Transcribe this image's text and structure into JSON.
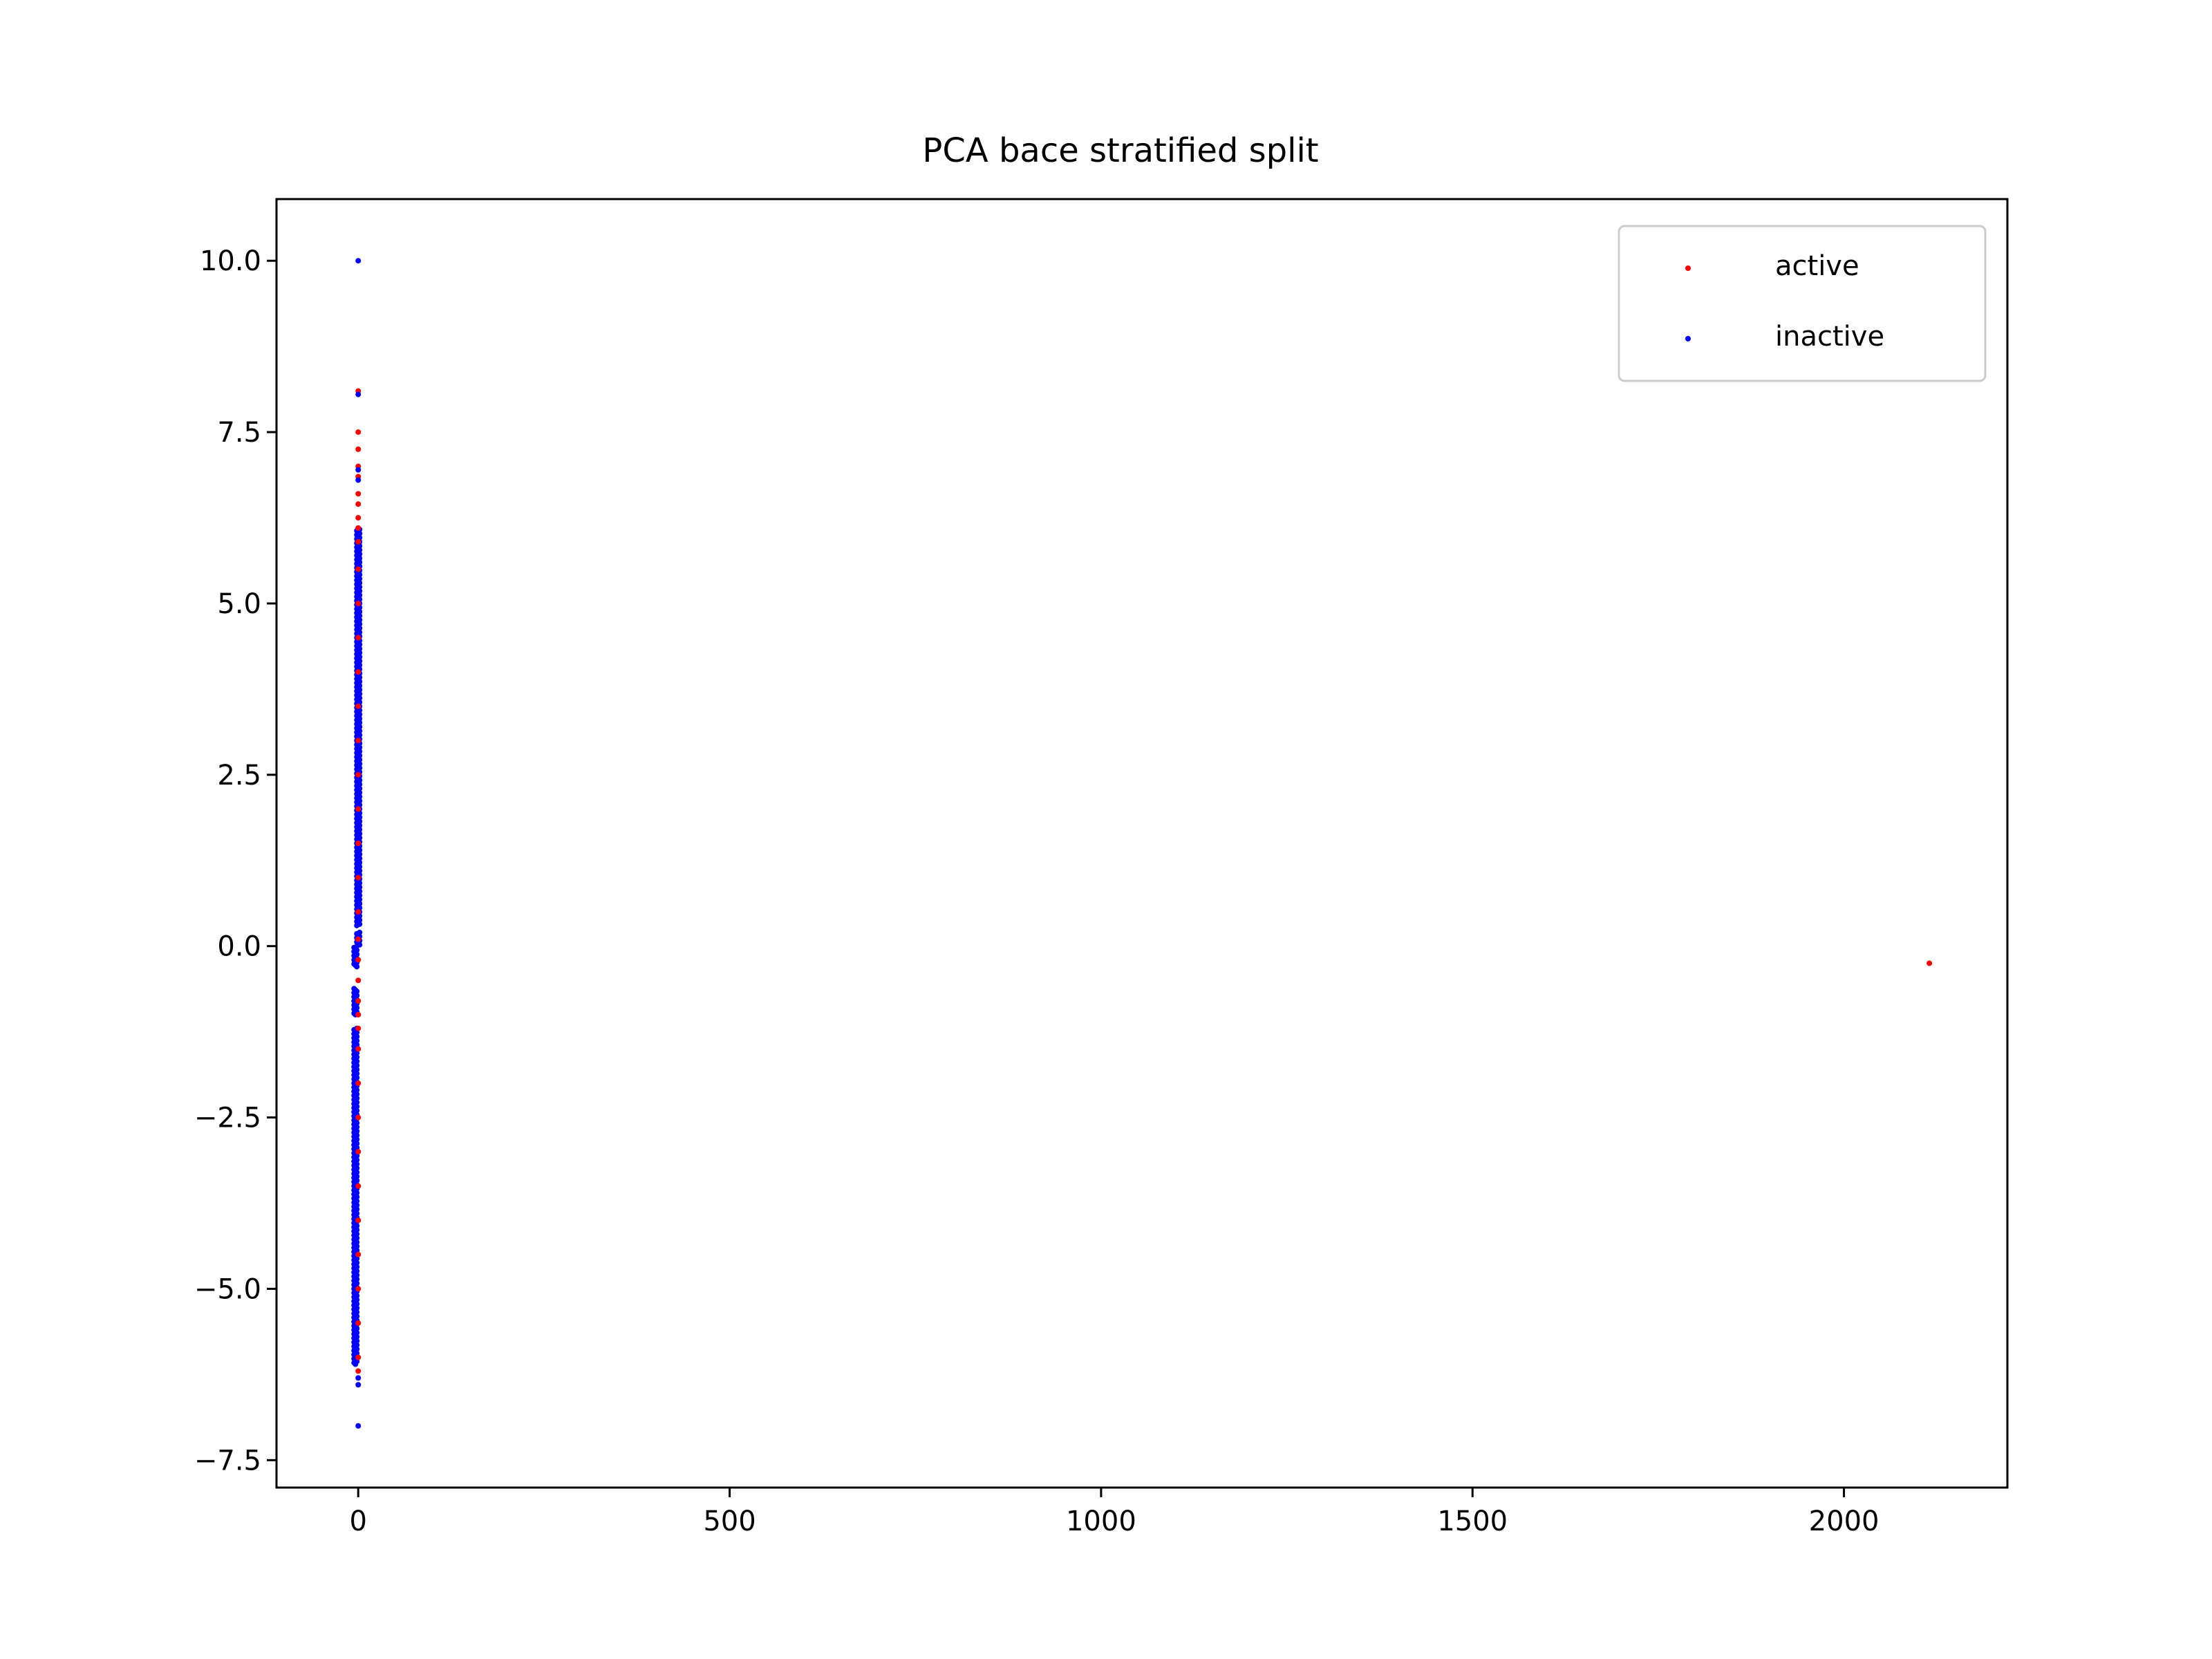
{
  "chart_data": {
    "type": "scatter",
    "title": "PCA bace stratified split",
    "xlabel": "",
    "ylabel": "",
    "xlim": [
      -110,
      2220
    ],
    "ylim": [
      -7.9,
      10.9
    ],
    "x_ticks": [
      0,
      500,
      1000,
      1500,
      2000
    ],
    "y_ticks": [
      10.0,
      7.5,
      5.0,
      2.5,
      0.0,
      -2.5,
      -5.0,
      -7.5
    ],
    "x_tick_labels": [
      "0",
      "500",
      "1000",
      "1500",
      "2000"
    ],
    "y_tick_labels": [
      "10.0",
      "7.5",
      "5.0",
      "2.5",
      "0.0",
      "−2.5",
      "−5.0",
      "−7.5"
    ],
    "grid": false,
    "legend_position": "top-right",
    "series": [
      {
        "name": "active",
        "color": "#ff0000",
        "points": [
          [
            0,
            8.1
          ],
          [
            0,
            7.5
          ],
          [
            0,
            7.25
          ],
          [
            0,
            7.0
          ],
          [
            0,
            6.85
          ],
          [
            0,
            6.6
          ],
          [
            0,
            6.45
          ],
          [
            0,
            6.25
          ],
          [
            0,
            6.1
          ],
          [
            0,
            5.9
          ],
          [
            0,
            5.5
          ],
          [
            0,
            5.0
          ],
          [
            0,
            4.5
          ],
          [
            0,
            4.0
          ],
          [
            0,
            3.5
          ],
          [
            0,
            3.0
          ],
          [
            0,
            2.5
          ],
          [
            0,
            2.0
          ],
          [
            0,
            1.5
          ],
          [
            0,
            1.0
          ],
          [
            0,
            0.5
          ],
          [
            0,
            0.1
          ],
          [
            0,
            -0.2
          ],
          [
            0,
            -0.5
          ],
          [
            0,
            -0.8
          ],
          [
            0,
            -1.0
          ],
          [
            0,
            -1.2
          ],
          [
            0,
            -1.5
          ],
          [
            0,
            -2.0
          ],
          [
            0,
            -2.5
          ],
          [
            0,
            -3.0
          ],
          [
            0,
            -3.5
          ],
          [
            0,
            -4.0
          ],
          [
            0,
            -4.5
          ],
          [
            0,
            -5.0
          ],
          [
            0,
            -5.5
          ],
          [
            0,
            -6.0
          ],
          [
            0,
            -6.2
          ],
          [
            2115,
            -0.25
          ]
        ]
      },
      {
        "name": "inactive",
        "color": "#0000ff",
        "points": [
          [
            0,
            10.0
          ],
          [
            0,
            8.05
          ],
          [
            0,
            6.95
          ],
          [
            0,
            6.8
          ],
          [
            0,
            -6.3
          ],
          [
            0,
            -6.4
          ],
          [
            0,
            -7.0
          ]
        ],
        "dense_ranges": [
          [
            -6.1,
            -1.2
          ],
          [
            -1.0,
            -0.6
          ],
          [
            -0.3,
            0.2
          ],
          [
            0.3,
            6.1
          ]
        ]
      }
    ]
  }
}
